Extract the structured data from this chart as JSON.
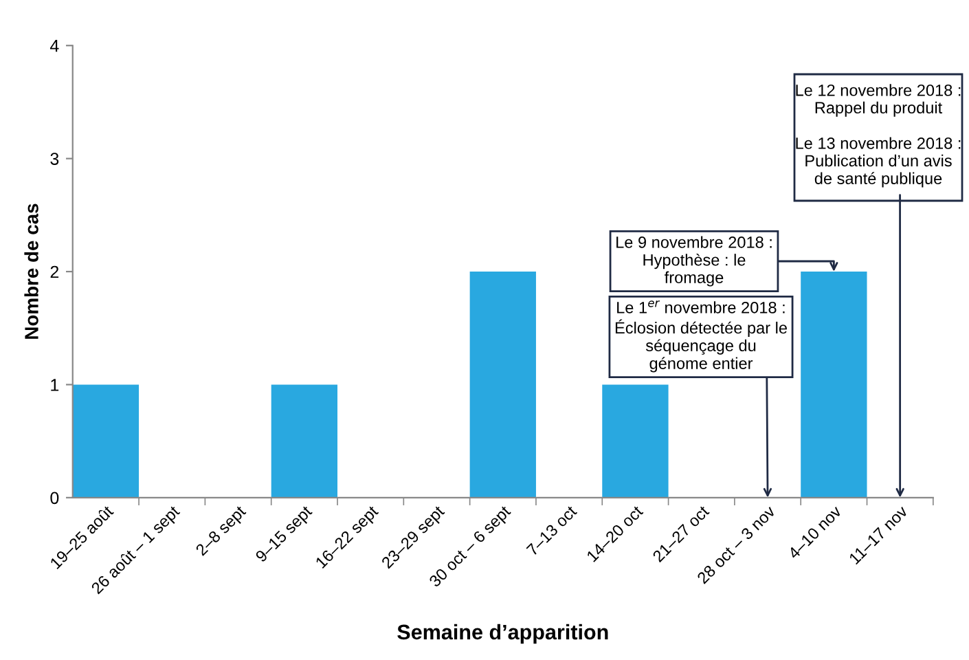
{
  "chart_data": {
    "type": "bar",
    "xlabel": "Semaine d’apparition",
    "ylabel": "Nombre de cas",
    "categories": [
      "19–25 août",
      "26 août – 1 sept",
      "2–8 sept",
      "9–15 sept",
      "16–22 sept",
      "23–29 sept",
      "30 oct – 6 sept",
      "7–13 oct",
      "14–20 oct",
      "21–27 oct",
      "28 oct – 3 nov",
      "4–10 nov",
      "11–17 nov"
    ],
    "values": [
      1,
      0,
      0,
      1,
      0,
      0,
      2,
      0,
      1,
      0,
      0,
      2,
      0
    ],
    "color": "#29a8e0",
    "ylim": [
      0,
      4
    ],
    "yticks": [
      0,
      1,
      2,
      3,
      4
    ],
    "grid": false,
    "legend": false,
    "annotations": [
      {
        "text": "Le 1$^{er}$ novembre 2018 :\nÉclosion détectée par le\nséquençage du\ngénome entier",
        "x": "28 oct – 3 nov",
        "y": 0
      },
      {
        "text": "Le 9 novembre 2018 :\nHypothèse : le\nfromage",
        "x": "4–10 nov",
        "y": 2
      },
      "Le 12 novembre 2018 :\nRappel du produit",
      {
        "text": "Le 13 novembre 2018 :\nPublication d’un avis\nde santé publique",
        "x": "11–17 nov",
        "y": 0
      }
    ]
  }
}
